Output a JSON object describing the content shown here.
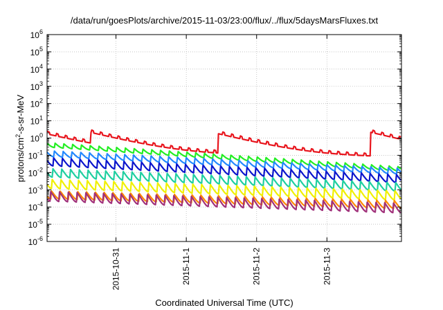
{
  "chart_data": {
    "type": "line",
    "title": "/data/run/goesPlots/archive/2015-11-03/23:00/flux/../flux/5daysMarsFluxes.txt",
    "xlabel": "Coordinated Universal Time (UTC)",
    "ylabel": {
      "prefix": "protons/cm",
      "sup": "2",
      "suffix": "-s-sr-MeV"
    },
    "y_scale": "log",
    "ylim": [
      1e-06,
      1000000.0
    ],
    "y_ticks": [
      {
        "base": "10",
        "exp": "-6"
      },
      {
        "base": "10",
        "exp": "-5"
      },
      {
        "base": "10",
        "exp": "-4"
      },
      {
        "base": "10",
        "exp": "-3"
      },
      {
        "base": "10",
        "exp": "-2"
      },
      {
        "base": "10",
        "exp": "-1"
      },
      {
        "base": "10",
        "exp": "0"
      },
      {
        "base": "10",
        "exp": "1"
      },
      {
        "base": "10",
        "exp": "2"
      },
      {
        "base": "10",
        "exp": "3"
      },
      {
        "base": "10",
        "exp": "4"
      },
      {
        "base": "10",
        "exp": "5"
      },
      {
        "base": "10",
        "exp": "6"
      }
    ],
    "xlim": [
      -0.98,
      4.06
    ],
    "x_unit": "days since 2015-10-31 00:00 UTC",
    "x_ticks": [
      {
        "label": "2015-10-31",
        "value": 0
      },
      {
        "label": "2015-11-1",
        "value": 1
      },
      {
        "label": "2015-11-2",
        "value": 2
      },
      {
        "label": "2015-11-3",
        "value": 3
      }
    ],
    "grid": true,
    "legend": "none",
    "sawtooth_period_days": 0.125,
    "series": [
      {
        "color": "#e8141c",
        "mode": "red",
        "values": [
          1.5,
          0.3,
          0.15,
          0.08
        ]
      },
      {
        "color": "#22ee22",
        "mode": "saw",
        "base": 0.3,
        "end": 0.012,
        "amp": 1.8
      },
      {
        "color": "#2288ff",
        "mode": "saw",
        "base": 0.085,
        "end": 0.008,
        "amp": 2.2
      },
      {
        "color": "#0a14cc",
        "mode": "saw",
        "base": 0.025,
        "end": 0.0025,
        "amp": 3.0
      },
      {
        "color": "#1ecfa0",
        "mode": "saw",
        "base": 0.0055,
        "end": 0.0008,
        "amp": 3.2
      },
      {
        "color": "#f0f000",
        "mode": "saw",
        "base": 0.0012,
        "end": 0.00025,
        "amp": 3.5
      },
      {
        "color": "#ff8800",
        "mode": "saw",
        "base": 0.0003,
        "end": 8e-05,
        "amp": 3.0
      },
      {
        "color": "#a0307a",
        "mode": "saw",
        "base": 0.00022,
        "end": 4.5e-05,
        "amp": 3.8
      }
    ]
  }
}
